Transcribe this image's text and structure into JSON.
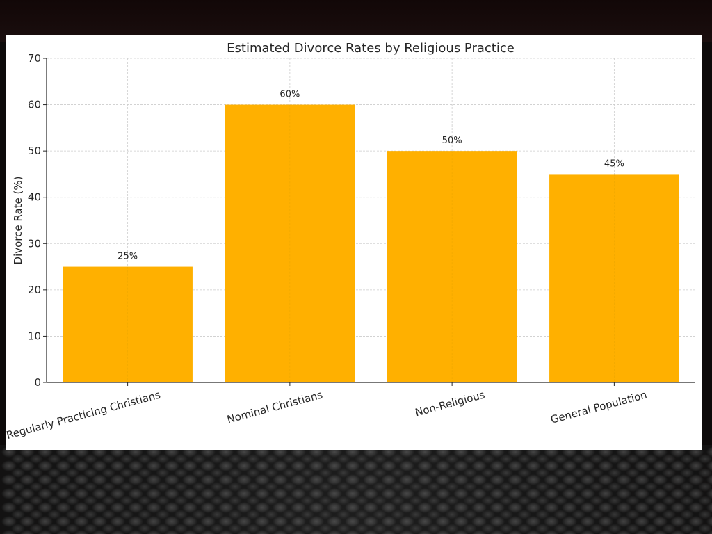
{
  "chart_data": {
    "type": "bar",
    "title": "Estimated Divorce Rates by Religious Practice",
    "xlabel": "",
    "ylabel": "Divorce Rate (%)",
    "categories": [
      "Regularly Practicing Christians",
      "Nominal Christians",
      "Non-Religious",
      "General Population"
    ],
    "values": [
      25,
      60,
      50,
      45
    ],
    "data_labels": [
      "25%",
      "60%",
      "50%",
      "45%"
    ],
    "ylim": [
      0,
      70
    ],
    "yticks": [
      0,
      10,
      20,
      30,
      40,
      50,
      60,
      70
    ],
    "grid": true,
    "bar_color": "#FFB000"
  }
}
